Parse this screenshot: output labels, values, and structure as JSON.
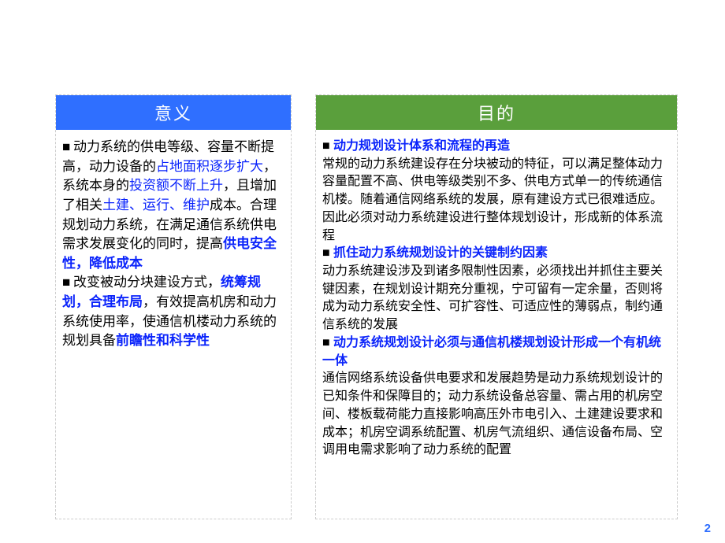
{
  "page_number": "2",
  "watermark": "",
  "colors": {
    "header_left": "#2f6fff",
    "header_right": "#5a9f3c",
    "highlight": "#0b24fb",
    "text": "#000000",
    "border": "#cccccc",
    "background": "#ffffff",
    "pagenum": "#2f6fff"
  },
  "left": {
    "title": "意义",
    "p1a": "动力系统的供电等级、容量不断提高，动力设备的",
    "p1h1": "占地面积逐步扩大",
    "p1b": "，系统本身的",
    "p1h2": "投资额不断上升",
    "p1c": "，且增加了相关",
    "p1h3": "土建、运行、维护",
    "p1d": "成本。合理规划动力系统，在满足通信系统供电需求发展变化的同时，提高",
    "p1h4": "供电安全性，降低成本",
    "p2a": "改变被动分块建设方式，",
    "p2h1": "统筹规划，合理布局",
    "p2b": "，有效提高机房和动力系统使用率，使通信机楼动力系统的规划具备",
    "p2h2": "前瞻性和科学性"
  },
  "right": {
    "title": "目的",
    "h1": "动力规划设计体系和流程的再造",
    "b1": "常规的动力系统建设存在分块被动的特征，可以满足整体动力容量配置不高、供电等级类别不多、供电方式单一的传统通信机楼。随着通信网络系统的发展，原有建设方式已很难适应。因此必须对动力系统建设进行整体规划设计，形成新的体系流程",
    "h2": "抓住动力系统规划设计的关键制约因素",
    "b2": "动力系统建设涉及到诸多限制性因素，必须找出并抓住主要关键因素，在规划设计期充分重视，宁可留有一定余量，否则将成为动力系统安全性、可扩容性、可适应性的薄弱点，制约通信系统的发展",
    "h3": "动力系统规划设计必须与通信机楼规划设计形成一个有机统一体",
    "b3": "通信网络系统设备供电要求和发展趋势是动力系统规划设计的已知条件和保障目的；动力系统设备总容量、需占用的机房空间、楼板载荷能力直接影响高压外市电引入、土建建设要求和成本；机房空调系统配置、机房气流组织、通信设备布局、空调用电需求影响了动力系统的配置"
  }
}
